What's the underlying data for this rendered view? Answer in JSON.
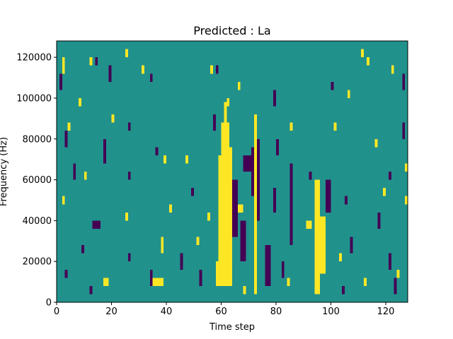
{
  "chart_data": {
    "type": "heatmap",
    "title": "Predicted : La",
    "xlabel": "Time step",
    "ylabel": "Frequency (Hz)",
    "xlim": [
      0,
      128
    ],
    "ylim": [
      0,
      128000
    ],
    "x_ticks": [
      {
        "value": 0,
        "label": "0"
      },
      {
        "value": 20,
        "label": "20"
      },
      {
        "value": 40,
        "label": "40"
      },
      {
        "value": 60,
        "label": "60"
      },
      {
        "value": 80,
        "label": "80"
      },
      {
        "value": 100,
        "label": "100"
      },
      {
        "value": 120,
        "label": "120"
      }
    ],
    "y_ticks": [
      {
        "value": 0,
        "label": "0"
      },
      {
        "value": 20000,
        "label": "20000"
      },
      {
        "value": 40000,
        "label": "40000"
      },
      {
        "value": 60000,
        "label": "60000"
      },
      {
        "value": 80000,
        "label": "80000"
      },
      {
        "value": 100000,
        "label": "100000"
      },
      {
        "value": 120000,
        "label": "120000"
      }
    ],
    "colormap": "viridis",
    "colors": {
      "low": "#440154",
      "mid": "#21918c",
      "high": "#fde725"
    },
    "background_value": 0,
    "grid": false,
    "cells_note_units": "x = time step, y = frequency in Hz; value -1 = low (dark), +1 = high (yellow)",
    "cells": [
      {
        "x0": 60,
        "x1": 63,
        "y0": 8000,
        "y1": 88000,
        "value": 1
      },
      {
        "x0": 63,
        "x1": 64,
        "y0": 8000,
        "y1": 76000,
        "value": 1
      },
      {
        "x0": 59,
        "x1": 60,
        "y0": 20000,
        "y1": 72000,
        "value": 1
      },
      {
        "x0": 58,
        "x1": 60,
        "y0": 8000,
        "y1": 20000,
        "value": 1
      },
      {
        "x0": 61,
        "x1": 62,
        "y0": 88000,
        "y1": 98000,
        "value": 1
      },
      {
        "x0": 72,
        "x1": 73,
        "y0": 4000,
        "y1": 92000,
        "value": 1
      },
      {
        "x0": 94,
        "x1": 96,
        "y0": 4000,
        "y1": 60000,
        "value": 1
      },
      {
        "x0": 96,
        "x1": 98,
        "y0": 14000,
        "y1": 42000,
        "value": 1
      },
      {
        "x0": 17,
        "x1": 19,
        "y0": 8000,
        "y1": 12000,
        "value": 1
      },
      {
        "x0": 35,
        "x1": 39,
        "y0": 8000,
        "y1": 12000,
        "value": 1
      },
      {
        "x0": 38,
        "x1": 39,
        "y0": 24000,
        "y1": 32000,
        "value": 1
      },
      {
        "x0": 66,
        "x1": 68,
        "y0": 44000,
        "y1": 48000,
        "value": 1
      },
      {
        "x0": 91,
        "x1": 93,
        "y0": 36000,
        "y1": 40000,
        "value": 1
      },
      {
        "x0": 76,
        "x1": 78,
        "y0": 8000,
        "y1": 28000,
        "value": -1
      },
      {
        "x0": 73,
        "x1": 74,
        "y0": 40000,
        "y1": 80000,
        "value": -1
      },
      {
        "x0": 64,
        "x1": 66,
        "y0": 32000,
        "y1": 60000,
        "value": -1
      },
      {
        "x0": 85,
        "x1": 86,
        "y0": 28000,
        "y1": 68000,
        "value": -1
      },
      {
        "x0": 67,
        "x1": 69,
        "y0": 20000,
        "y1": 40000,
        "value": -1
      },
      {
        "x0": 34,
        "x1": 35,
        "y0": 8000,
        "y1": 16000,
        "value": -1
      },
      {
        "x0": 13,
        "x1": 16,
        "y0": 36000,
        "y1": 40000,
        "value": -1
      },
      {
        "x0": 98,
        "x1": 100,
        "y0": 44000,
        "y1": 60000,
        "value": -1
      },
      {
        "x0": 71,
        "x1": 72,
        "y0": 52000,
        "y1": 76000,
        "value": -1
      },
      {
        "x0": 2,
        "x1": 3,
        "y0": 112000,
        "y1": 120000,
        "value": 1
      },
      {
        "x0": 12,
        "x1": 13,
        "y0": 116000,
        "y1": 120000,
        "value": 1
      },
      {
        "x0": 25,
        "x1": 26,
        "y0": 120000,
        "y1": 124000,
        "value": 1
      },
      {
        "x0": 31,
        "x1": 32,
        "y0": 112000,
        "y1": 116000,
        "value": 1
      },
      {
        "x0": 56,
        "x1": 57,
        "y0": 112000,
        "y1": 116000,
        "value": 1
      },
      {
        "x0": 66,
        "x1": 67,
        "y0": 104000,
        "y1": 108000,
        "value": 1
      },
      {
        "x0": 111,
        "x1": 112,
        "y0": 120000,
        "y1": 124000,
        "value": 1
      },
      {
        "x0": 113,
        "x1": 114,
        "y0": 116000,
        "y1": 120000,
        "value": 1
      },
      {
        "x0": 122,
        "x1": 123,
        "y0": 112000,
        "y1": 116000,
        "value": 1
      },
      {
        "x0": 106,
        "x1": 107,
        "y0": 100000,
        "y1": 104000,
        "value": 1
      },
      {
        "x0": 8,
        "x1": 9,
        "y0": 96000,
        "y1": 100000,
        "value": 1
      },
      {
        "x0": 20,
        "x1": 21,
        "y0": 88000,
        "y1": 92000,
        "value": 1
      },
      {
        "x0": 62,
        "x1": 63,
        "y0": 96000,
        "y1": 100000,
        "value": 1
      },
      {
        "x0": 4,
        "x1": 5,
        "y0": 84000,
        "y1": 88000,
        "value": 1
      },
      {
        "x0": 10,
        "x1": 11,
        "y0": 60000,
        "y1": 64000,
        "value": 1
      },
      {
        "x0": 39,
        "x1": 40,
        "y0": 68000,
        "y1": 72000,
        "value": 1
      },
      {
        "x0": 47,
        "x1": 48,
        "y0": 68000,
        "y1": 72000,
        "value": 1
      },
      {
        "x0": 85,
        "x1": 86,
        "y0": 84000,
        "y1": 88000,
        "value": 1
      },
      {
        "x0": 101,
        "x1": 102,
        "y0": 84000,
        "y1": 88000,
        "value": 1
      },
      {
        "x0": 116,
        "x1": 117,
        "y0": 76000,
        "y1": 80000,
        "value": 1
      },
      {
        "x0": 127,
        "x1": 128,
        "y0": 64000,
        "y1": 68000,
        "value": 1
      },
      {
        "x0": 127,
        "x1": 128,
        "y0": 48000,
        "y1": 52000,
        "value": 1
      },
      {
        "x0": 119,
        "x1": 120,
        "y0": 52000,
        "y1": 56000,
        "value": 1
      },
      {
        "x0": 2,
        "x1": 3,
        "y0": 48000,
        "y1": 52000,
        "value": 1
      },
      {
        "x0": 25,
        "x1": 26,
        "y0": 40000,
        "y1": 44000,
        "value": 1
      },
      {
        "x0": 51,
        "x1": 52,
        "y0": 28000,
        "y1": 32000,
        "value": 1
      },
      {
        "x0": 55,
        "x1": 56,
        "y0": 40000,
        "y1": 44000,
        "value": 1
      },
      {
        "x0": 41,
        "x1": 42,
        "y0": 44000,
        "y1": 48000,
        "value": 1
      },
      {
        "x0": 103,
        "x1": 104,
        "y0": 20000,
        "y1": 24000,
        "value": 1
      },
      {
        "x0": 84,
        "x1": 85,
        "y0": 8000,
        "y1": 12000,
        "value": 1
      },
      {
        "x0": 68,
        "x1": 69,
        "y0": 4000,
        "y1": 8000,
        "value": 1
      },
      {
        "x0": 112,
        "x1": 113,
        "y0": 8000,
        "y1": 12000,
        "value": 1
      },
      {
        "x0": 124,
        "x1": 125,
        "y0": 12000,
        "y1": 16000,
        "value": 1
      },
      {
        "x0": 1,
        "x1": 2,
        "y0": 104000,
        "y1": 112000,
        "value": -1
      },
      {
        "x0": 14,
        "x1": 15,
        "y0": 116000,
        "y1": 120000,
        "value": -1
      },
      {
        "x0": 19,
        "x1": 20,
        "y0": 108000,
        "y1": 116000,
        "value": -1
      },
      {
        "x0": 34,
        "x1": 35,
        "y0": 108000,
        "y1": 112000,
        "value": -1
      },
      {
        "x0": 58,
        "x1": 59,
        "y0": 112000,
        "y1": 116000,
        "value": -1
      },
      {
        "x0": 79,
        "x1": 80,
        "y0": 96000,
        "y1": 104000,
        "value": -1
      },
      {
        "x0": 100,
        "x1": 101,
        "y0": 104000,
        "y1": 108000,
        "value": -1
      },
      {
        "x0": 126,
        "x1": 127,
        "y0": 104000,
        "y1": 112000,
        "value": -1
      },
      {
        "x0": 3,
        "x1": 4,
        "y0": 76000,
        "y1": 84000,
        "value": -1
      },
      {
        "x0": 17,
        "x1": 18,
        "y0": 68000,
        "y1": 80000,
        "value": -1
      },
      {
        "x0": 26,
        "x1": 27,
        "y0": 84000,
        "y1": 88000,
        "value": -1
      },
      {
        "x0": 36,
        "x1": 37,
        "y0": 72000,
        "y1": 76000,
        "value": -1
      },
      {
        "x0": 57,
        "x1": 58,
        "y0": 84000,
        "y1": 92000,
        "value": -1
      },
      {
        "x0": 68,
        "x1": 71,
        "y0": 64000,
        "y1": 72000,
        "value": -1
      },
      {
        "x0": 80,
        "x1": 81,
        "y0": 72000,
        "y1": 80000,
        "value": -1
      },
      {
        "x0": 92,
        "x1": 93,
        "y0": 60000,
        "y1": 64000,
        "value": -1
      },
      {
        "x0": 121,
        "x1": 122,
        "y0": 60000,
        "y1": 64000,
        "value": -1
      },
      {
        "x0": 126,
        "x1": 127,
        "y0": 80000,
        "y1": 88000,
        "value": -1
      },
      {
        "x0": 6,
        "x1": 7,
        "y0": 60000,
        "y1": 68000,
        "value": -1
      },
      {
        "x0": 26,
        "x1": 27,
        "y0": 60000,
        "y1": 64000,
        "value": -1
      },
      {
        "x0": 49,
        "x1": 50,
        "y0": 52000,
        "y1": 56000,
        "value": -1
      },
      {
        "x0": 79,
        "x1": 80,
        "y0": 44000,
        "y1": 56000,
        "value": -1
      },
      {
        "x0": 105,
        "x1": 106,
        "y0": 48000,
        "y1": 52000,
        "value": -1
      },
      {
        "x0": 117,
        "x1": 118,
        "y0": 36000,
        "y1": 44000,
        "value": -1
      },
      {
        "x0": 9,
        "x1": 10,
        "y0": 24000,
        "y1": 28000,
        "value": -1
      },
      {
        "x0": 26,
        "x1": 27,
        "y0": 20000,
        "y1": 24000,
        "value": -1
      },
      {
        "x0": 45,
        "x1": 46,
        "y0": 16000,
        "y1": 24000,
        "value": -1
      },
      {
        "x0": 52,
        "x1": 53,
        "y0": 8000,
        "y1": 16000,
        "value": -1
      },
      {
        "x0": 82,
        "x1": 83,
        "y0": 12000,
        "y1": 20000,
        "value": -1
      },
      {
        "x0": 107,
        "x1": 108,
        "y0": 24000,
        "y1": 32000,
        "value": -1
      },
      {
        "x0": 121,
        "x1": 122,
        "y0": 16000,
        "y1": 24000,
        "value": -1
      },
      {
        "x0": 3,
        "x1": 4,
        "y0": 12000,
        "y1": 16000,
        "value": -1
      },
      {
        "x0": 12,
        "x1": 13,
        "y0": 4000,
        "y1": 8000,
        "value": -1
      },
      {
        "x0": 104,
        "x1": 105,
        "y0": 4000,
        "y1": 8000,
        "value": -1
      },
      {
        "x0": 123,
        "x1": 124,
        "y0": 4000,
        "y1": 12000,
        "value": -1
      }
    ]
  }
}
